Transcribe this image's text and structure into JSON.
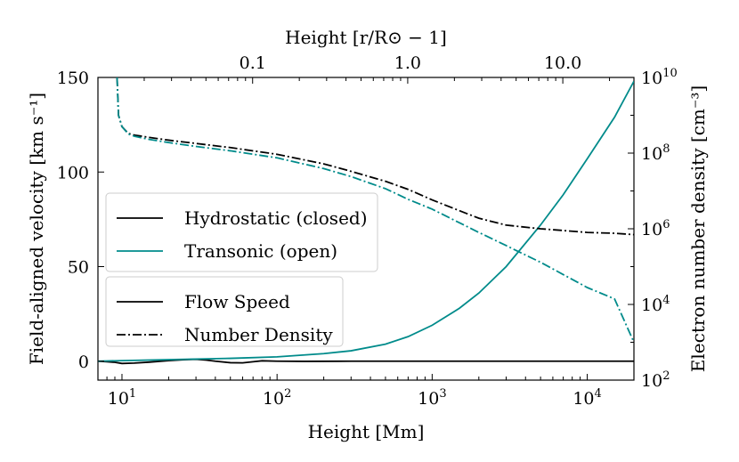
{
  "chart_data": {
    "type": "line",
    "axes": {
      "x_bottom": {
        "label": "Height [Mm]",
        "scale": "log",
        "range": [
          7,
          20000
        ],
        "ticks": [
          {
            "value": 10,
            "label": "10",
            "exp": "1"
          },
          {
            "value": 100,
            "label": "10",
            "exp": "2"
          },
          {
            "value": 1000,
            "label": "10",
            "exp": "3"
          },
          {
            "value": 10000,
            "label": "10",
            "exp": "4"
          }
        ]
      },
      "x_top": {
        "label": "Height [r/R⊙ − 1]",
        "scale": "log",
        "ticks": [
          {
            "value": 0.1,
            "label": "0.1"
          },
          {
            "value": 1.0,
            "label": "1.0"
          },
          {
            "value": 10.0,
            "label": "10.0"
          }
        ]
      },
      "y_left": {
        "label": "Field-aligned velocity [km s⁻¹]",
        "scale": "linear",
        "range": [
          -10,
          150
        ],
        "ticks": [
          {
            "value": 0,
            "label": "0"
          },
          {
            "value": 50,
            "label": "50"
          },
          {
            "value": 100,
            "label": "100"
          },
          {
            "value": 150,
            "label": "150"
          }
        ]
      },
      "y_right": {
        "label": "Electron number density [cm⁻³]",
        "scale": "log",
        "range": [
          100,
          10000000000
        ],
        "ticks": [
          {
            "value": 100,
            "label": "10",
            "exp": "2"
          },
          {
            "value": 10000,
            "label": "10",
            "exp": "4"
          },
          {
            "value": 1000000,
            "label": "10",
            "exp": "6"
          },
          {
            "value": 100000000,
            "label": "10",
            "exp": "8"
          },
          {
            "value": 10000000000,
            "label": "10",
            "exp": "10"
          }
        ]
      }
    },
    "series": [
      {
        "name": "Hydrostatic (closed) — Flow Speed",
        "axis": "left",
        "color": "#000000",
        "style": "solid",
        "x": [
          7,
          8,
          9,
          10,
          12,
          15,
          20,
          25,
          30,
          35,
          40,
          50,
          60,
          70,
          80,
          100,
          150,
          300,
          1000,
          10000,
          20000
        ],
        "y": [
          0,
          -0.3,
          -0.6,
          -1.2,
          -1,
          -0.5,
          0.3,
          0.8,
          1,
          0.6,
          0,
          -0.8,
          -0.9,
          -0.3,
          0.2,
          0,
          -0.1,
          0,
          0,
          0,
          0
        ]
      },
      {
        "name": "Transonic (open) — Flow Speed",
        "axis": "left",
        "color": "#008b8b",
        "style": "solid",
        "x": [
          7,
          10,
          20,
          50,
          100,
          200,
          300,
          500,
          700,
          1000,
          1500,
          2000,
          3000,
          5000,
          7000,
          10000,
          15000,
          20000
        ],
        "y": [
          0,
          0.3,
          0.8,
          1.5,
          2.3,
          4,
          5.5,
          9,
          13,
          19,
          28,
          36,
          50,
          72,
          88,
          107,
          129,
          148
        ]
      },
      {
        "name": "Hydrostatic (closed) — Number Density",
        "axis": "right",
        "color": "#000000",
        "style": "dashdot",
        "x": [
          9.3,
          9.5,
          10,
          11,
          12,
          15,
          20,
          30,
          50,
          100,
          200,
          300,
          500,
          700,
          1000,
          1500,
          2000,
          3000,
          5000,
          7000,
          10000,
          15000,
          20000
        ],
        "y": [
          10000000000.0,
          1000000000.0,
          500000000.0,
          330000000.0,
          300000000.0,
          260000000.0,
          220000000.0,
          180000000.0,
          140000000.0,
          93000000.0,
          52000000.0,
          33000000.0,
          18000000.0,
          11000000.0,
          5800000.0,
          3000000.0,
          1900000.0,
          1250000.0,
          1000000.0,
          900000.0,
          800000.0,
          760000.0,
          700000.0
        ]
      },
      {
        "name": "Transonic (open) — Number Density",
        "axis": "right",
        "color": "#008b8b",
        "style": "dashdot",
        "x": [
          9.3,
          9.5,
          10,
          11,
          12,
          15,
          20,
          30,
          50,
          100,
          200,
          300,
          500,
          700,
          1000,
          2000,
          3000,
          5000,
          10000,
          15000,
          20000
        ],
        "y": [
          10000000000.0,
          1000000000.0,
          500000000.0,
          320000000.0,
          280000000.0,
          230000000.0,
          190000000.0,
          150000000.0,
          115000000.0,
          75000000.0,
          39000000.0,
          24000000.0,
          11500000.0,
          6000000.0,
          3300000.0,
          800000.0,
          360000.0,
          130000.0,
          28000.0,
          14000.0,
          1000.0
        ]
      }
    ],
    "legends": [
      {
        "position": "center-left",
        "entries": [
          {
            "label": "Hydrostatic (closed)",
            "color": "#000000",
            "style": "solid"
          },
          {
            "label": "Transonic (open)",
            "color": "#008b8b",
            "style": "solid"
          }
        ]
      },
      {
        "position": "lower-left",
        "entries": [
          {
            "label": "Flow Speed",
            "color": "#000000",
            "style": "solid"
          },
          {
            "label": "Number Density",
            "color": "#000000",
            "style": "dashdot"
          }
        ]
      }
    ]
  }
}
